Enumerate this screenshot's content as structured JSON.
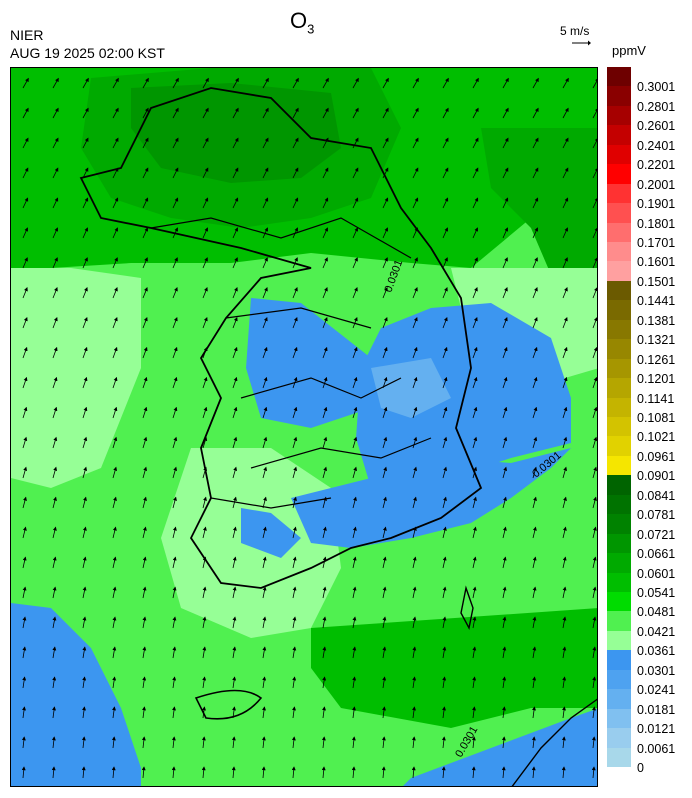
{
  "header": {
    "org": "NIER",
    "datetime": "AUG 19 2025 02:00 KST",
    "title_main": "O",
    "title_sub": "3",
    "wind_scale": "5 m/s",
    "unit": "ppmV"
  },
  "legend": {
    "bands": [
      {
        "label": "0.3001",
        "color": "#6e0000"
      },
      {
        "label": "0.2801",
        "color": "#8a0000"
      },
      {
        "label": "0.2601",
        "color": "#a60000"
      },
      {
        "label": "0.2401",
        "color": "#c40000"
      },
      {
        "label": "0.2201",
        "color": "#e00000"
      },
      {
        "label": "0.2001",
        "color": "#ff0000"
      },
      {
        "label": "0.1901",
        "color": "#ff3232"
      },
      {
        "label": "0.1801",
        "color": "#ff5050"
      },
      {
        "label": "0.1701",
        "color": "#ff6e6e"
      },
      {
        "label": "0.1601",
        "color": "#ff8c8c"
      },
      {
        "label": "0.1501",
        "color": "#ffa0a0"
      },
      {
        "label": "0.1441",
        "color": "#6b5a00"
      },
      {
        "label": "0.1381",
        "color": "#7a6a00"
      },
      {
        "label": "0.1321",
        "color": "#887800"
      },
      {
        "label": "0.1261",
        "color": "#978700"
      },
      {
        "label": "0.1201",
        "color": "#a69600"
      },
      {
        "label": "0.1141",
        "color": "#b5a600"
      },
      {
        "label": "0.1081",
        "color": "#c4b400"
      },
      {
        "label": "0.1021",
        "color": "#d3c300"
      },
      {
        "label": "0.0961",
        "color": "#e1d200"
      },
      {
        "label": "0.0901",
        "color": "#f5e600"
      },
      {
        "label": "0.0841",
        "color": "#006400"
      },
      {
        "label": "0.0781",
        "color": "#007300"
      },
      {
        "label": "0.0721",
        "color": "#008200"
      },
      {
        "label": "0.0661",
        "color": "#009600"
      },
      {
        "label": "0.0601",
        "color": "#00aa00"
      },
      {
        "label": "0.0541",
        "color": "#00be00"
      },
      {
        "label": "0.0481",
        "color": "#00dc00"
      },
      {
        "label": "0.0421",
        "color": "#50f050"
      },
      {
        "label": "0.0361",
        "color": "#96ff96"
      },
      {
        "label": "0.0301",
        "color": "#3c96f0"
      },
      {
        "label": "0.0241",
        "color": "#4ea2f0"
      },
      {
        "label": "0.0181",
        "color": "#64b0f0"
      },
      {
        "label": "0.0121",
        "color": "#80c0f0"
      },
      {
        "label": "0.0061",
        "color": "#99cdee"
      },
      {
        "label": "0",
        "color": "#a8d8ea"
      }
    ]
  },
  "contour_label": "0.0301"
}
